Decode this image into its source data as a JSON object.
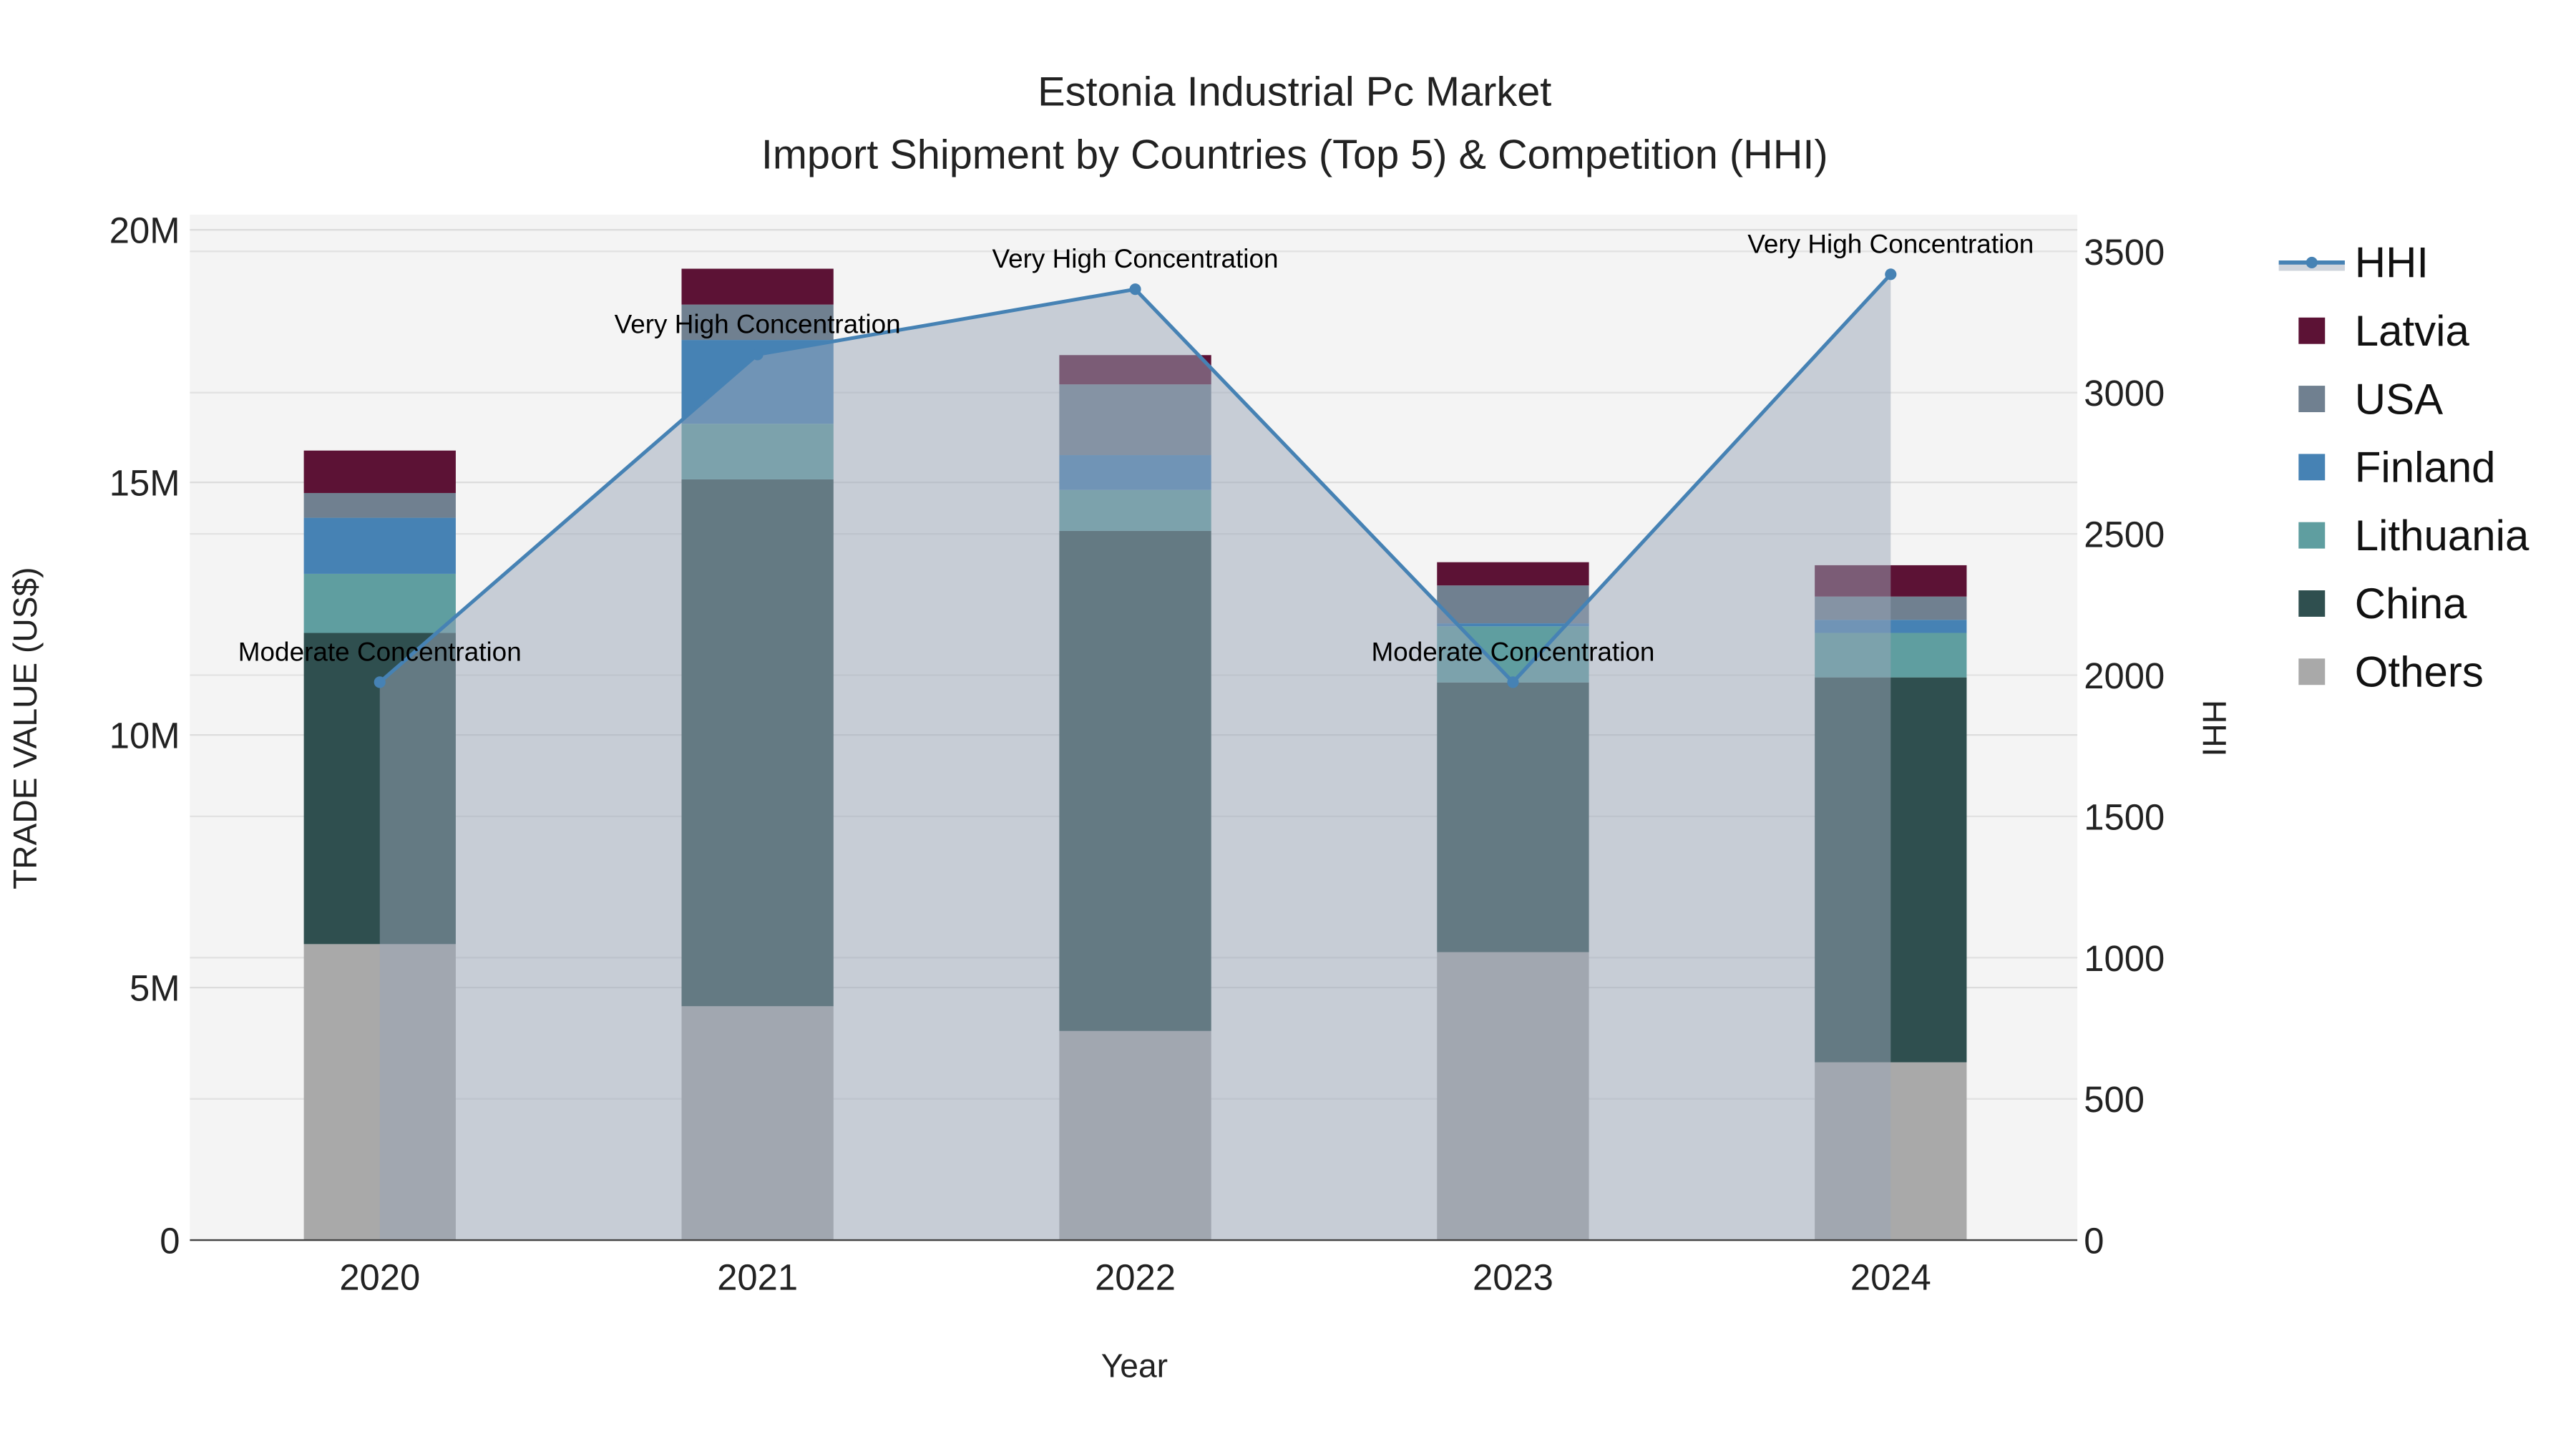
{
  "chart_data": {
    "type": "bar",
    "stacked": true,
    "title": "Estonia Industrial Pc Market",
    "subtitle": "Import Shipment by Countries (Top 5) & Competition (HHI)",
    "xlabel": "Year",
    "ylabel": "TRADE VALUE (US$)",
    "y2label": "HHI",
    "categories": [
      "2020",
      "2021",
      "2022",
      "2023",
      "2024"
    ],
    "ylim": [
      0,
      20300000
    ],
    "y_ticks": [
      0,
      5000000,
      10000000,
      15000000,
      20000000
    ],
    "y_tick_labels": [
      "0",
      "5M",
      "10M",
      "15M",
      "20M"
    ],
    "y2lim": [
      0,
      3630
    ],
    "y2_ticks": [
      0,
      500,
      1000,
      1500,
      2000,
      2500,
      3000,
      3500
    ],
    "y2_tick_labels": [
      "0",
      "500",
      "1000",
      "1500",
      "2000",
      "2500",
      "3000",
      "3500"
    ],
    "series": [
      {
        "name": "Others",
        "color": "#a9a9a9",
        "values": [
          5860000,
          4630000,
          4140000,
          5700000,
          3520000
        ]
      },
      {
        "name": "China",
        "color": "#2f4f4f",
        "values": [
          6160000,
          10430000,
          9900000,
          5340000,
          7620000
        ]
      },
      {
        "name": "Lithuania",
        "color": "#5f9ea0",
        "values": [
          1170000,
          1100000,
          810000,
          1110000,
          880000
        ]
      },
      {
        "name": "Finland",
        "color": "#4682b4",
        "values": [
          1110000,
          1660000,
          690000,
          60000,
          260000
        ]
      },
      {
        "name": "USA",
        "color": "#708090",
        "values": [
          490000,
          700000,
          1400000,
          750000,
          460000
        ]
      },
      {
        "name": "Latvia",
        "color": "#5c1235",
        "values": [
          840000,
          710000,
          580000,
          460000,
          620000
        ]
      }
    ],
    "line_series": {
      "name": "HHI",
      "color": "#4682b4",
      "axis": "y2",
      "values": [
        1975,
        3135,
        3366,
        1975,
        3419
      ],
      "annotations": [
        "Moderate Concentration",
        "Very High Concentration",
        "Very High Concentration",
        "Moderate Concentration",
        "Very High Concentration"
      ]
    },
    "legend": {
      "placement": "right",
      "order": [
        "HHI",
        "Latvia",
        "USA",
        "Finland",
        "Lithuania",
        "China",
        "Others"
      ]
    },
    "grid": true
  }
}
